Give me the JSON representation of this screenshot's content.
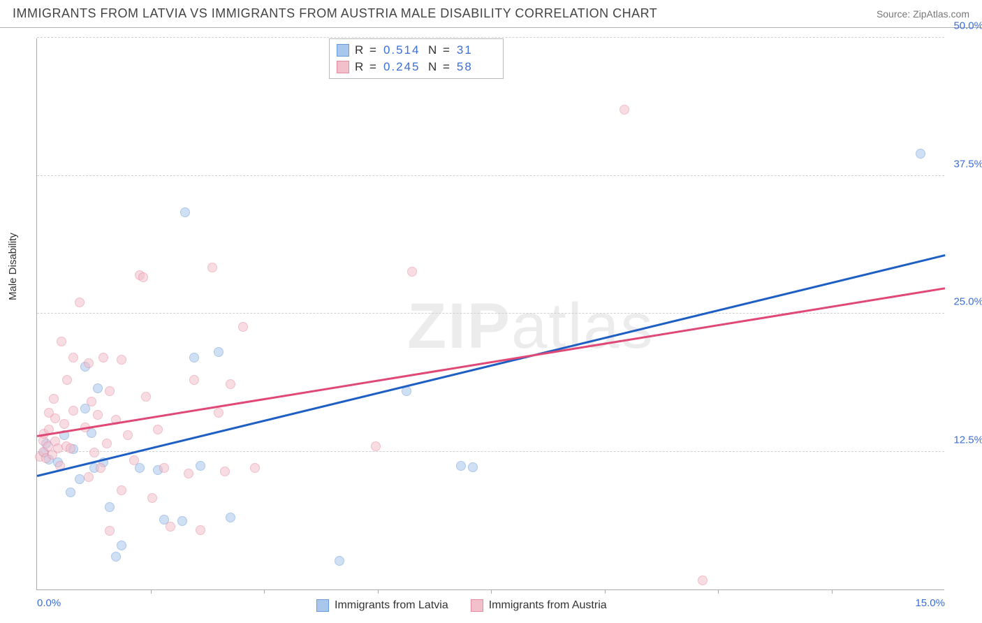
{
  "title": "IMMIGRANTS FROM LATVIA VS IMMIGRANTS FROM AUSTRIA MALE DISABILITY CORRELATION CHART",
  "source": "Source: ZipAtlas.com",
  "y_axis_label": "Male Disability",
  "watermark": {
    "part1": "ZIP",
    "part2": "atlas"
  },
  "chart": {
    "type": "scatter",
    "xlim": [
      0.0,
      15.0
    ],
    "ylim": [
      0.0,
      50.0
    ],
    "x_ticks": [
      0.0,
      15.0
    ],
    "x_tick_labels": [
      "0.0%",
      "15.0%"
    ],
    "x_minor_ticks": [
      1.875,
      3.75,
      5.625,
      7.5,
      9.375,
      11.25,
      13.125
    ],
    "y_ticks": [
      12.5,
      25.0,
      37.5,
      50.0
    ],
    "y_tick_labels": [
      "12.5%",
      "25.0%",
      "37.5%",
      "50.0%"
    ],
    "background_color": "#ffffff",
    "grid_color": "#d0d0d0",
    "axis_color": "#aaaaaa",
    "tick_label_color": "#3b6fd6",
    "series": [
      {
        "name": "Immigrants from Latvia",
        "color_fill": "#a9c6ec",
        "color_stroke": "#6a9bd8",
        "r": 0.514,
        "n": 31,
        "regression": {
          "x1": 0.0,
          "y1": 10.2,
          "x2": 15.0,
          "y2": 30.2,
          "color": "#1f5fc4",
          "width": 2.5
        },
        "points": [
          [
            0.12,
            12.4
          ],
          [
            0.2,
            11.8
          ],
          [
            0.15,
            13.2
          ],
          [
            0.35,
            11.5
          ],
          [
            0.45,
            14.0
          ],
          [
            0.55,
            8.8
          ],
          [
            0.6,
            12.7
          ],
          [
            0.7,
            10.0
          ],
          [
            0.8,
            20.2
          ],
          [
            0.8,
            16.4
          ],
          [
            0.9,
            14.2
          ],
          [
            0.95,
            11.0
          ],
          [
            1.0,
            18.2
          ],
          [
            1.1,
            11.5
          ],
          [
            1.2,
            7.5
          ],
          [
            1.3,
            3.0
          ],
          [
            1.7,
            11.0
          ],
          [
            1.4,
            4.0
          ],
          [
            2.0,
            10.8
          ],
          [
            2.1,
            6.3
          ],
          [
            2.4,
            6.2
          ],
          [
            2.45,
            34.2
          ],
          [
            2.6,
            21.0
          ],
          [
            2.7,
            11.2
          ],
          [
            3.0,
            21.5
          ],
          [
            3.2,
            6.5
          ],
          [
            5.0,
            2.6
          ],
          [
            6.1,
            18.0
          ],
          [
            7.0,
            11.2
          ],
          [
            7.2,
            11.1
          ],
          [
            14.6,
            39.5
          ]
        ]
      },
      {
        "name": "Immigrants from Austria",
        "color_fill": "#f1c0cb",
        "color_stroke": "#e68aa0",
        "r": 0.245,
        "n": 58,
        "regression": {
          "x1": 0.0,
          "y1": 13.8,
          "x2": 15.0,
          "y2": 27.2,
          "color": "#e04876",
          "width": 2.5
        },
        "points": [
          [
            0.05,
            12.0
          ],
          [
            0.1,
            13.5
          ],
          [
            0.1,
            12.5
          ],
          [
            0.12,
            14.1
          ],
          [
            0.15,
            11.9
          ],
          [
            0.18,
            13.0
          ],
          [
            0.2,
            14.5
          ],
          [
            0.2,
            16.0
          ],
          [
            0.25,
            12.2
          ],
          [
            0.28,
            17.3
          ],
          [
            0.3,
            13.4
          ],
          [
            0.3,
            15.5
          ],
          [
            0.35,
            12.8
          ],
          [
            0.38,
            11.2
          ],
          [
            0.4,
            22.5
          ],
          [
            0.45,
            15.0
          ],
          [
            0.48,
            13.0
          ],
          [
            0.5,
            19.0
          ],
          [
            0.55,
            12.8
          ],
          [
            0.6,
            16.2
          ],
          [
            0.6,
            21.0
          ],
          [
            0.7,
            26.0
          ],
          [
            0.8,
            14.7
          ],
          [
            0.85,
            10.2
          ],
          [
            0.85,
            20.5
          ],
          [
            0.9,
            17.0
          ],
          [
            0.95,
            12.4
          ],
          [
            1.0,
            15.8
          ],
          [
            1.05,
            11.0
          ],
          [
            1.1,
            21.0
          ],
          [
            1.15,
            13.2
          ],
          [
            1.2,
            18.0
          ],
          [
            1.2,
            5.3
          ],
          [
            1.3,
            15.4
          ],
          [
            1.4,
            9.0
          ],
          [
            1.4,
            20.8
          ],
          [
            1.5,
            14.0
          ],
          [
            1.6,
            11.7
          ],
          [
            1.7,
            28.5
          ],
          [
            1.75,
            28.3
          ],
          [
            1.8,
            17.5
          ],
          [
            1.9,
            8.3
          ],
          [
            2.0,
            14.5
          ],
          [
            2.1,
            11.0
          ],
          [
            2.2,
            5.7
          ],
          [
            2.5,
            10.5
          ],
          [
            2.6,
            19.0
          ],
          [
            2.7,
            5.4
          ],
          [
            2.9,
            29.2
          ],
          [
            3.0,
            16.0
          ],
          [
            3.1,
            10.7
          ],
          [
            3.2,
            18.6
          ],
          [
            3.4,
            23.8
          ],
          [
            3.6,
            11.0
          ],
          [
            5.6,
            13.0
          ],
          [
            6.2,
            28.8
          ],
          [
            9.7,
            43.5
          ],
          [
            11.0,
            0.8
          ]
        ]
      }
    ]
  },
  "stats_box": {
    "r_label": "R  =",
    "n_label": "N  ="
  },
  "legend": {
    "items": [
      "Immigrants from Latvia",
      "Immigrants from Austria"
    ]
  }
}
